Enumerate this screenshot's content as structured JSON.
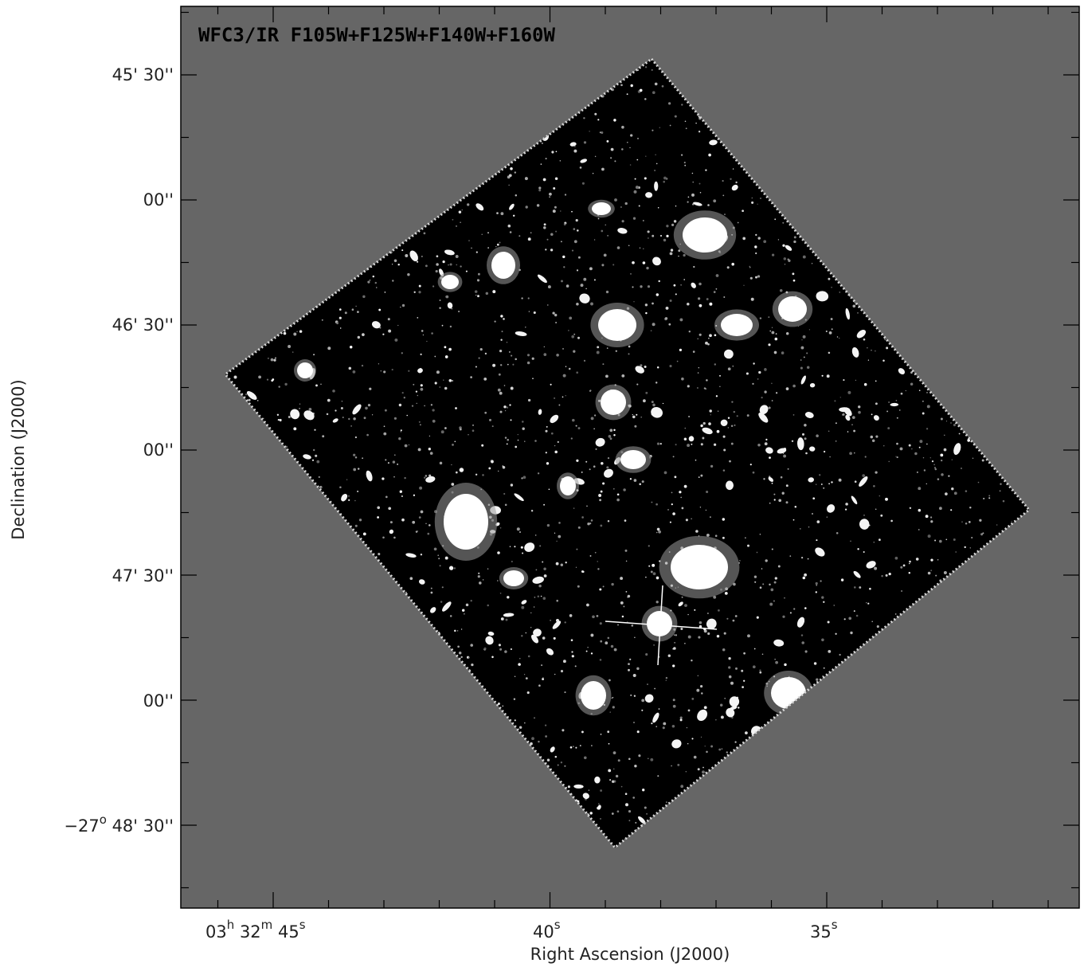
{
  "image_title": "WFC3/IR F105W+F125W+F140W+F160W",
  "colors": {
    "background_field": "#666666",
    "sky": "#000000",
    "sources": "#ffffff",
    "frame": "#000000"
  },
  "axes": {
    "x_label": "Right Ascension (J2000)",
    "y_label": "Declination (J2000)",
    "x_ticks": [
      {
        "h": "03",
        "h_sup": "h",
        "m": "32",
        "m_sup": "m",
        "s": "45",
        "s_sup": "s"
      },
      {
        "s": "40",
        "s_sup": "s"
      },
      {
        "s": "35",
        "s_sup": "s"
      }
    ],
    "y_ticks": [
      {
        "text": "45' 30''"
      },
      {
        "text": "00''"
      },
      {
        "text": "46' 30''"
      },
      {
        "text": "00''"
      },
      {
        "text": "47' 30''"
      },
      {
        "text": "00''"
      },
      {
        "prefix": "−27",
        "sup": "o",
        "text": "48' 30''"
      }
    ]
  }
}
